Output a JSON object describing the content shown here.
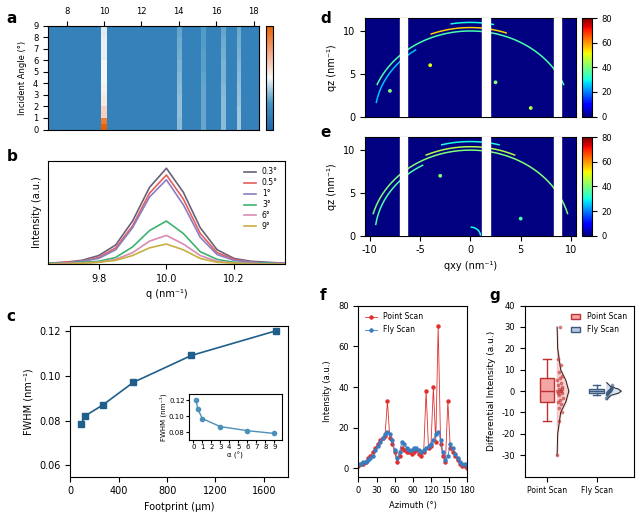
{
  "chart_data": [
    {
      "type": "heatmap",
      "panel_label": "a",
      "ylabel": "Incident Angle (°)",
      "x_edges": [
        7,
        9.85,
        10.15,
        13.9,
        14.15,
        15.2,
        15.45,
        16.25,
        16.5,
        17.1,
        17.35,
        18.3
      ],
      "y_edges": [
        0,
        0.5,
        1,
        2,
        3,
        4,
        5,
        6,
        7,
        8,
        9
      ],
      "cells": [
        [
          0.15,
          1.0,
          0.15,
          0.35,
          0.15,
          0.3,
          0.15,
          0.35,
          0.15,
          0.38,
          0.15
        ],
        [
          0.15,
          0.9,
          0.15,
          0.35,
          0.15,
          0.3,
          0.15,
          0.35,
          0.15,
          0.38,
          0.15
        ],
        [
          0.15,
          0.62,
          0.15,
          0.36,
          0.15,
          0.3,
          0.15,
          0.35,
          0.15,
          0.38,
          0.15
        ],
        [
          0.15,
          0.55,
          0.15,
          0.36,
          0.15,
          0.3,
          0.15,
          0.35,
          0.15,
          0.37,
          0.15
        ],
        [
          0.15,
          0.52,
          0.15,
          0.35,
          0.15,
          0.3,
          0.15,
          0.34,
          0.15,
          0.36,
          0.15
        ],
        [
          0.15,
          0.5,
          0.15,
          0.34,
          0.15,
          0.29,
          0.15,
          0.33,
          0.15,
          0.35,
          0.15
        ],
        [
          0.15,
          0.5,
          0.15,
          0.33,
          0.15,
          0.28,
          0.15,
          0.33,
          0.15,
          0.34,
          0.15
        ],
        [
          0.15,
          0.48,
          0.15,
          0.32,
          0.15,
          0.28,
          0.15,
          0.32,
          0.15,
          0.33,
          0.15
        ],
        [
          0.15,
          0.48,
          0.15,
          0.31,
          0.15,
          0.27,
          0.15,
          0.31,
          0.15,
          0.32,
          0.15
        ],
        [
          0.15,
          0.47,
          0.15,
          0.3,
          0.15,
          0.27,
          0.15,
          0.3,
          0.15,
          0.31,
          0.15
        ]
      ],
      "xlim": [
        7,
        18.3
      ],
      "xticks": [
        8,
        10,
        12,
        14,
        16,
        18
      ],
      "ylim": [
        0,
        9
      ],
      "yticks": [
        0,
        1,
        2,
        3,
        4,
        5,
        6,
        7,
        8,
        9
      ],
      "colorbar": {
        "range": [
          0,
          1
        ],
        "ticks": []
      }
    },
    {
      "type": "line",
      "panel_label": "b",
      "xlabel": "q (nm⁻¹)",
      "ylabel": "Intensity (a.u.)",
      "x": [
        9.65,
        9.7,
        9.75,
        9.8,
        9.85,
        9.9,
        9.95,
        10.0,
        10.05,
        10.1,
        10.15,
        10.2,
        10.25,
        10.3,
        10.35
      ],
      "series": [
        {
          "name": "0.3°",
          "color": "#6b5f7a",
          "values": [
            0.01,
            0.02,
            0.04,
            0.09,
            0.2,
            0.45,
            0.8,
            1.0,
            0.75,
            0.38,
            0.15,
            0.06,
            0.03,
            0.02,
            0.01
          ]
        },
        {
          "name": "0.5°",
          "color": "#e0605a",
          "values": [
            0.01,
            0.02,
            0.03,
            0.07,
            0.17,
            0.4,
            0.74,
            0.93,
            0.68,
            0.32,
            0.12,
            0.05,
            0.02,
            0.01,
            0.01
          ]
        },
        {
          "name": "1°",
          "color": "#8e7cc3",
          "values": [
            0.01,
            0.01,
            0.03,
            0.06,
            0.15,
            0.38,
            0.7,
            0.88,
            0.62,
            0.28,
            0.1,
            0.04,
            0.02,
            0.01,
            0.01
          ]
        },
        {
          "name": "3°",
          "color": "#3cb371",
          "values": [
            0.01,
            0.01,
            0.02,
            0.03,
            0.07,
            0.18,
            0.35,
            0.45,
            0.32,
            0.13,
            0.05,
            0.02,
            0.01,
            0.01,
            0.0
          ]
        },
        {
          "name": "6°",
          "color": "#d98cb3",
          "values": [
            0.0,
            0.01,
            0.01,
            0.02,
            0.05,
            0.12,
            0.24,
            0.3,
            0.21,
            0.09,
            0.03,
            0.01,
            0.01,
            0.0,
            0.0
          ]
        },
        {
          "name": "9°",
          "color": "#c8b040",
          "values": [
            0.0,
            0.0,
            0.01,
            0.02,
            0.04,
            0.09,
            0.17,
            0.21,
            0.15,
            0.06,
            0.02,
            0.01,
            0.0,
            0.0,
            0.0
          ]
        }
      ],
      "xlim": [
        9.65,
        10.35
      ],
      "xticks": [
        9.8,
        10.0,
        10.2
      ],
      "ylim": [
        0,
        1.08
      ],
      "tick_labels": "x",
      "legend": "upper right"
    },
    {
      "type": "line",
      "panel_label": "c",
      "xlabel": "Footprint (μm)",
      "ylabel": "FWHM (nm⁻¹)",
      "x": [
        90,
        120,
        270,
        520,
        1000,
        1700
      ],
      "series": [
        {
          "name": "FWHM",
          "color": "#1f5f8b",
          "marker": "s",
          "values": [
            0.0785,
            0.082,
            0.087,
            0.097,
            0.109,
            0.12
          ]
        }
      ],
      "xlim": [
        0,
        1800
      ],
      "xticks": [
        0,
        400,
        800,
        1200,
        1600
      ],
      "ylim": [
        0.055,
        0.122
      ],
      "yticks": [
        0.06,
        0.08,
        {
          "value": 0.1,
          "label": "0.10"
        },
        0.12
      ],
      "inset": {
        "type": "line",
        "xlabel": "α (°)",
        "ylabel": "FWHM (nm⁻¹)",
        "x": [
          0.3,
          0.5,
          1,
          3,
          6,
          9
        ],
        "series": [
          {
            "name": "FWHM",
            "color": "#4a90b8",
            "marker": "o",
            "values": [
              0.12,
              0.109,
              0.097,
              0.087,
              0.082,
              0.0785
            ]
          }
        ],
        "xlim": [
          -0.5,
          9.8
        ],
        "xticks": [
          0,
          1,
          2,
          3,
          4,
          5,
          6,
          7,
          8,
          9
        ],
        "ylim": [
          0.07,
          0.128
        ],
        "yticks": [
          0.08,
          {
            "value": 0.1,
            "label": "0.10"
          },
          0.12
        ]
      }
    },
    {
      "type": "image",
      "panel_label": "d",
      "ylabel": "qz (nm⁻¹)",
      "rings": [
        {
          "q": 10.0,
          "azimuth_range": [
            22,
            158
          ],
          "intensity": 35
        },
        {
          "q": 10.4,
          "azimuth_range": [
            70,
            112
          ],
          "intensity": 55
        },
        {
          "q": 11.0,
          "azimuth_range": [
            78,
            100
          ],
          "intensity": 30
        },
        {
          "q": 9.5,
          "azimuth_range": [
            125,
            170
          ],
          "intensity": 25
        }
      ],
      "spots": {
        "qxy": [
          -4,
          2.5,
          6,
          -8
        ],
        "qz": [
          6,
          4,
          1,
          3
        ],
        "intensity": [
          50,
          40,
          45,
          40
        ]
      },
      "detector_gaps": [
        [
          -7.0,
          -6.3
        ],
        [
          1.2,
          1.9
        ],
        [
          8.3,
          9.0
        ]
      ],
      "xlim": [
        -10.5,
        10.5
      ],
      "ylim": [
        0,
        11.5
      ],
      "yticks": [
        0,
        5,
        10
      ],
      "tick_labels": "y",
      "colorbar": {
        "range": [
          0,
          80
        ],
        "ticks": [
          0,
          20,
          40,
          60,
          80
        ]
      }
    },
    {
      "type": "image",
      "panel_label": "e",
      "xlabel": "qxy (nm⁻¹)",
      "ylabel": "qz (nm⁻¹)",
      "rings": [
        {
          "q": 10.0,
          "azimuth_range": [
            15,
            165
          ],
          "intensity": 40
        },
        {
          "q": 10.4,
          "azimuth_range": [
            65,
            115
          ],
          "intensity": 45
        },
        {
          "q": 11.0,
          "azimuth_range": [
            75,
            105
          ],
          "intensity": 30
        },
        {
          "q": 9.5,
          "azimuth_range": [
            120,
            172
          ],
          "intensity": 35
        },
        {
          "q": 1.0,
          "azimuth_range": [
            5,
            85
          ],
          "intensity": 30
        }
      ],
      "spots": {
        "qxy": [
          -3,
          5
        ],
        "qz": [
          7,
          2
        ],
        "intensity": [
          40,
          35
        ]
      },
      "detector_gaps": [
        [
          -7.0,
          -6.3
        ],
        [
          1.2,
          1.9
        ],
        [
          8.3,
          9.0
        ]
      ],
      "xlim": [
        -10.5,
        10.5
      ],
      "xticks": [
        -10,
        -5,
        0,
        5,
        10
      ],
      "ylim": [
        0,
        11.5
      ],
      "yticks": [
        0,
        5,
        10
      ],
      "colorbar": {
        "range": [
          0,
          80
        ],
        "ticks": [
          0,
          20,
          40,
          60,
          80
        ]
      }
    },
    {
      "type": "line",
      "panel_label": "f",
      "xlabel": "Azimuth (°)",
      "ylabel": "Intensity (a.u.)",
      "x": [
        0,
        4,
        8,
        12,
        16,
        20,
        24,
        28,
        32,
        36,
        40,
        44,
        48,
        52,
        56,
        60,
        64,
        68,
        72,
        76,
        80,
        84,
        88,
        92,
        96,
        100,
        104,
        108,
        112,
        116,
        120,
        124,
        128,
        132,
        136,
        140,
        144,
        148,
        152,
        156,
        160,
        164,
        168,
        172,
        176,
        180
      ],
      "series": [
        {
          "name": "Point Scan",
          "color": "#e03030",
          "marker": "o",
          "values": [
            1,
            2,
            2,
            3,
            5,
            6,
            8,
            10,
            12,
            14,
            15,
            16,
            33,
            15,
            12,
            8,
            3,
            6,
            10,
            9,
            8,
            8,
            7,
            8,
            9,
            7,
            6,
            8,
            38,
            10,
            11,
            40,
            13,
            70,
            12,
            6,
            3,
            33,
            10,
            8,
            6,
            4,
            2,
            1,
            1,
            0
          ]
        },
        {
          "name": "Fly Scan",
          "color": "#3a7cc0",
          "marker": "o",
          "values": [
            2,
            2,
            3,
            3,
            4,
            5,
            6,
            9,
            11,
            13,
            15,
            17,
            18,
            17,
            14,
            9,
            5,
            8,
            13,
            12,
            10,
            9,
            9,
            10,
            10,
            9,
            8,
            9,
            10,
            11,
            12,
            14,
            17,
            18,
            14,
            8,
            4,
            6,
            12,
            10,
            7,
            5,
            3,
            2,
            2,
            1
          ]
        }
      ],
      "xlim": [
        0,
        180
      ],
      "xticks": [
        0,
        30,
        60,
        90,
        120,
        150,
        180
      ],
      "ylim": [
        -4,
        80
      ],
      "yticks": [
        0,
        20,
        40,
        60,
        80
      ],
      "legend": "upper left"
    },
    {
      "type": "box",
      "panel_label": "g",
      "ylabel": "Differential Intensity (a.u.)",
      "categories": [
        "Point Scan",
        "Fly Scan"
      ],
      "series": [
        {
          "name": "Point Scan",
          "color": "#f4a6a6",
          "box": {
            "whislo": -14,
            "q1": -5,
            "med": 0,
            "q3": 6,
            "whishi": 15
          },
          "points": [
            -30,
            -14,
            -10,
            -8,
            -6,
            -5,
            -4,
            -3,
            -2,
            -1,
            -1,
            0,
            0,
            0,
            1,
            1,
            2,
            3,
            4,
            5,
            6,
            7,
            9,
            12,
            15,
            30
          ],
          "curve": {
            "values": [
              -30,
              -20,
              -10,
              -5,
              0,
              5,
              10,
              20,
              30
            ],
            "density": [
              0.01,
              0.05,
              0.25,
              0.6,
              0.8,
              0.6,
              0.25,
              0.05,
              0.01
            ]
          }
        },
        {
          "name": "Fly Scan",
          "color": "#b7c9e2",
          "box": {
            "whislo": -2,
            "q1": -0.8,
            "med": 0,
            "q3": 1,
            "whishi": 3
          },
          "points": [
            -3,
            -2,
            -1.5,
            -1,
            -1,
            -0.5,
            -0.5,
            0,
            0,
            0,
            0,
            0.5,
            0.5,
            1,
            1,
            1.5,
            2,
            3
          ],
          "curve": {
            "values": [
              -4,
              -2,
              -1,
              0,
              1,
              2,
              4
            ],
            "density": [
              0.02,
              0.3,
              0.8,
              1.0,
              0.8,
              0.3,
              0.02
            ]
          }
        }
      ],
      "ylim": [
        -40,
        40
      ],
      "yticks": [
        -30,
        -20,
        -10,
        0,
        10,
        20,
        30,
        40
      ],
      "legend": "upper right"
    }
  ]
}
